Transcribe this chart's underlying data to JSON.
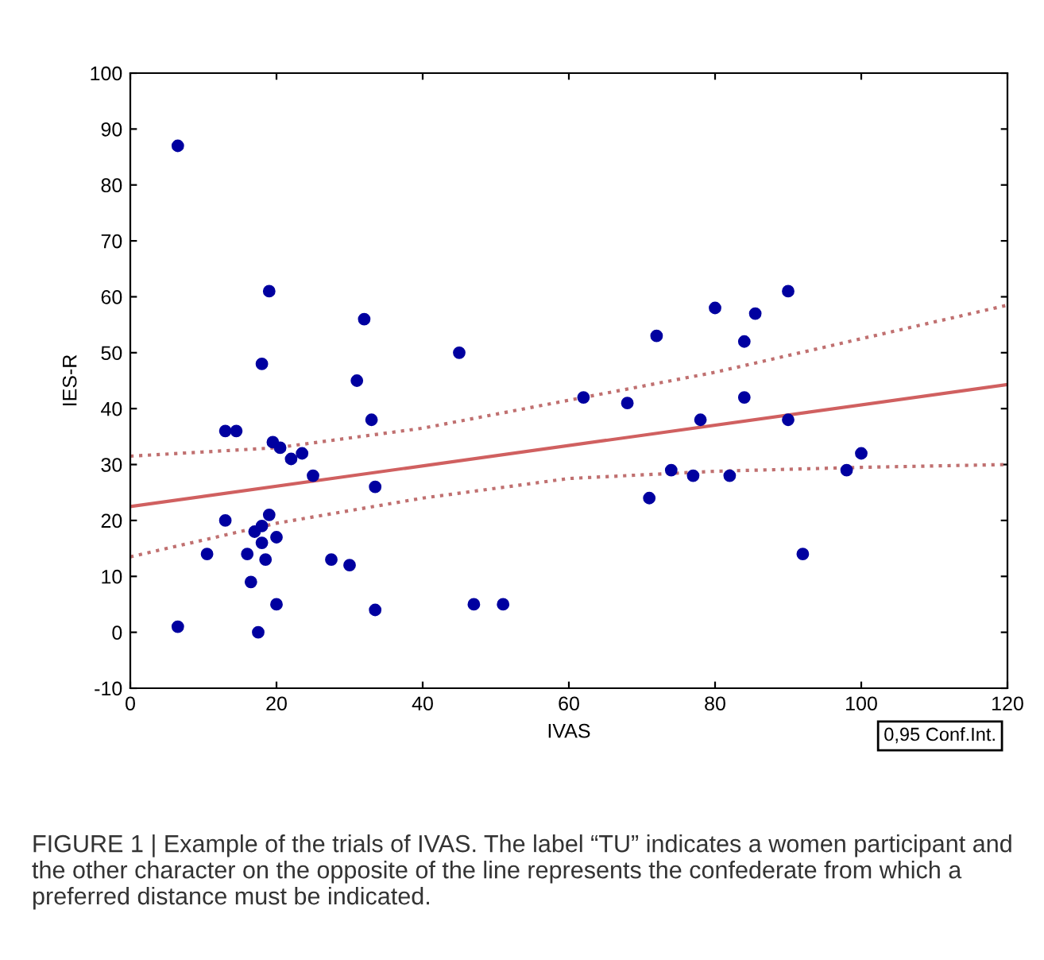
{
  "chart_data": {
    "type": "scatter",
    "xlabel": "IVAS",
    "ylabel": "IES-R",
    "xlim": [
      0,
      120
    ],
    "ylim": [
      -10,
      100
    ],
    "xticks": [
      0,
      20,
      40,
      60,
      80,
      100,
      120
    ],
    "yticks": [
      -10,
      0,
      10,
      20,
      30,
      40,
      50,
      60,
      70,
      80,
      90,
      100
    ],
    "grid": false,
    "legend": false,
    "marker": "circle",
    "series": [
      {
        "color": "#0000a0",
        "x": [
          6.5,
          6.5,
          10.5,
          13,
          13,
          14.5,
          16,
          16.5,
          17,
          17.5,
          18,
          18,
          18,
          18.5,
          19,
          19,
          19.5,
          20,
          20,
          20.5,
          22,
          23.5,
          25,
          27.5,
          30,
          31,
          32,
          33,
          33.5,
          33.5,
          45,
          47,
          51,
          62,
          68,
          71,
          72,
          74,
          77,
          78,
          80,
          82,
          84,
          84,
          85.5,
          90,
          90,
          92,
          98,
          100
        ],
        "values": [
          87,
          1,
          14,
          20,
          36,
          36,
          14,
          9,
          18,
          0,
          19,
          16,
          48,
          13,
          61,
          21,
          34,
          5,
          17,
          33,
          31,
          32,
          28,
          13,
          12,
          45,
          56,
          38,
          26,
          4,
          50,
          5,
          5,
          42,
          41,
          24,
          53,
          29,
          28,
          38,
          58,
          28,
          52,
          42,
          57,
          61,
          38,
          14,
          29,
          32
        ]
      },
      {
        "type": "line",
        "color": "#d06060",
        "line_style": "solid",
        "marker": "none",
        "x": [
          0,
          120
        ],
        "values": [
          22.5,
          44.3
        ]
      },
      {
        "type": "line",
        "color": "#c07070",
        "line_style": "dotted",
        "marker": "none",
        "x": [
          0,
          20,
          40,
          60,
          80,
          100,
          120
        ],
        "values": [
          31.5,
          33,
          36.5,
          41.5,
          46.5,
          52.5,
          58.5
        ]
      },
      {
        "type": "line",
        "color": "#c07070",
        "line_style": "dotted",
        "marker": "none",
        "x": [
          0,
          20,
          40,
          60,
          80,
          100,
          120
        ],
        "values": [
          13.5,
          19.5,
          24,
          27.5,
          28.8,
          29.5,
          30
        ]
      }
    ],
    "annotations": [
      "0,95 Conf.Int.",
      "FIGURE 1 | Example of the trials of IVAS. The label “TU” indicates a women participant and the other character on the opposite of the line represents the confederate from which a preferred distance must be indicated."
    ]
  }
}
